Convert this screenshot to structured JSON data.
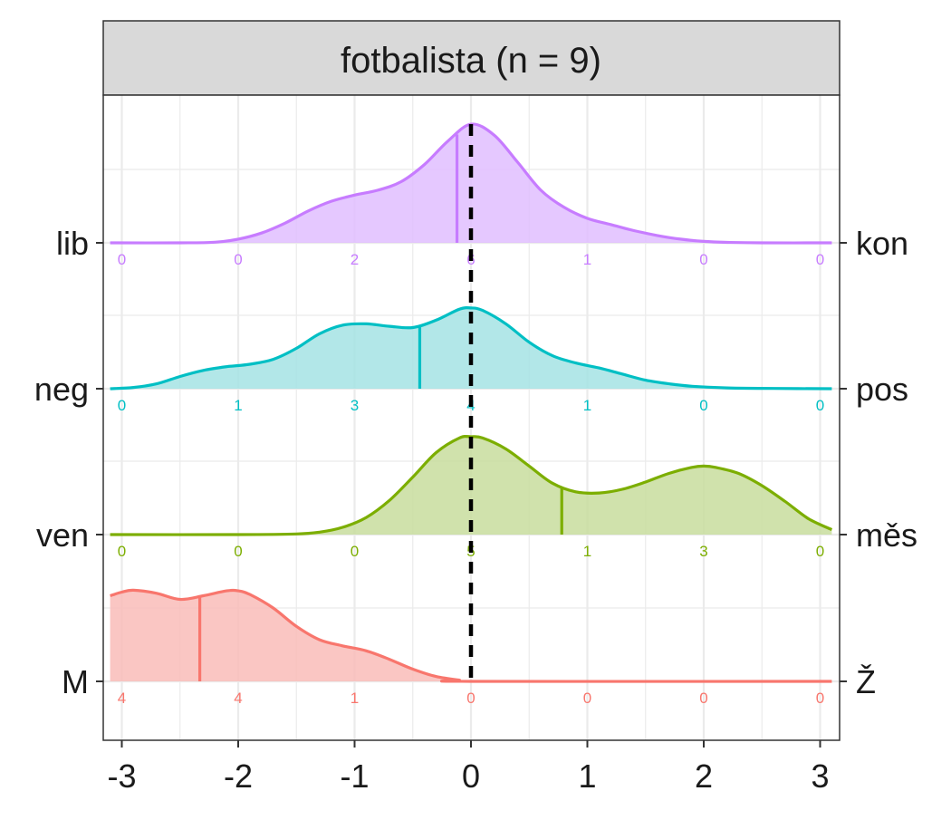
{
  "chart_data": {
    "type": "ridgeline",
    "facet_title": "fotbalista (n = 9)",
    "x_ticks": [
      "-3",
      "-2",
      "-1",
      "0",
      "1",
      "2",
      "3"
    ],
    "xlim": [
      -3.1,
      3.1
    ],
    "reference_line_x": 0,
    "grid": true,
    "count_positions": [
      -3,
      -2,
      -1,
      0,
      1,
      2,
      3
    ],
    "rows": [
      {
        "left_label": "lib",
        "right_label": "kon",
        "color": "#C77CFF",
        "fill": "#E1BEFF",
        "mean": -0.12,
        "counts": [
          "0",
          "0",
          "2",
          "6",
          "1",
          "0",
          "0"
        ],
        "density": [
          [
            -3.1,
            0
          ],
          [
            -2.5,
            0
          ],
          [
            -2.2,
            0.005
          ],
          [
            -2.0,
            0.03
          ],
          [
            -1.8,
            0.08
          ],
          [
            -1.6,
            0.16
          ],
          [
            -1.4,
            0.26
          ],
          [
            -1.2,
            0.34
          ],
          [
            -1.0,
            0.39
          ],
          [
            -0.8,
            0.43
          ],
          [
            -0.6,
            0.5
          ],
          [
            -0.4,
            0.64
          ],
          [
            -0.2,
            0.83
          ],
          [
            0,
            0.97
          ],
          [
            0.2,
            0.88
          ],
          [
            0.4,
            0.66
          ],
          [
            0.6,
            0.43
          ],
          [
            0.8,
            0.29
          ],
          [
            1.0,
            0.2
          ],
          [
            1.2,
            0.15
          ],
          [
            1.4,
            0.1
          ],
          [
            1.6,
            0.06
          ],
          [
            1.8,
            0.03
          ],
          [
            2.0,
            0.012
          ],
          [
            2.2,
            0.004
          ],
          [
            2.5,
            0
          ],
          [
            3.1,
            0
          ]
        ]
      },
      {
        "left_label": "neg",
        "right_label": "pos",
        "color": "#00BFC4",
        "fill": "#A5E3E4",
        "mean": -0.44,
        "counts": [
          "0",
          "1",
          "3",
          "4",
          "1",
          "0",
          "0"
        ],
        "density": [
          [
            -3.1,
            0
          ],
          [
            -2.9,
            0.01
          ],
          [
            -2.7,
            0.04
          ],
          [
            -2.5,
            0.1
          ],
          [
            -2.3,
            0.15
          ],
          [
            -2.1,
            0.18
          ],
          [
            -1.9,
            0.2
          ],
          [
            -1.7,
            0.24
          ],
          [
            -1.5,
            0.33
          ],
          [
            -1.3,
            0.45
          ],
          [
            -1.1,
            0.52
          ],
          [
            -0.9,
            0.53
          ],
          [
            -0.7,
            0.51
          ],
          [
            -0.5,
            0.5
          ],
          [
            -0.3,
            0.56
          ],
          [
            -0.1,
            0.65
          ],
          [
            0,
            0.66
          ],
          [
            0.1,
            0.64
          ],
          [
            0.3,
            0.53
          ],
          [
            0.5,
            0.38
          ],
          [
            0.7,
            0.27
          ],
          [
            0.9,
            0.21
          ],
          [
            1.1,
            0.17
          ],
          [
            1.3,
            0.12
          ],
          [
            1.5,
            0.07
          ],
          [
            1.7,
            0.04
          ],
          [
            1.9,
            0.02
          ],
          [
            2.2,
            0.007
          ],
          [
            2.6,
            0.002
          ],
          [
            3.1,
            0
          ]
        ]
      },
      {
        "left_label": "ven",
        "right_label": "měs",
        "color": "#7CAE00",
        "fill": "#C8DD9E",
        "mean": 0.78,
        "counts": [
          "0",
          "0",
          "0",
          "5",
          "1",
          "3",
          "0"
        ],
        "density": [
          [
            -3.1,
            0
          ],
          [
            -2.0,
            0
          ],
          [
            -1.5,
            0.005
          ],
          [
            -1.3,
            0.02
          ],
          [
            -1.1,
            0.06
          ],
          [
            -0.9,
            0.14
          ],
          [
            -0.7,
            0.28
          ],
          [
            -0.5,
            0.47
          ],
          [
            -0.3,
            0.67
          ],
          [
            -0.1,
            0.79
          ],
          [
            0,
            0.8
          ],
          [
            0.1,
            0.79
          ],
          [
            0.3,
            0.7
          ],
          [
            0.5,
            0.56
          ],
          [
            0.7,
            0.42
          ],
          [
            0.9,
            0.35
          ],
          [
            1.1,
            0.34
          ],
          [
            1.3,
            0.37
          ],
          [
            1.5,
            0.43
          ],
          [
            1.7,
            0.5
          ],
          [
            1.9,
            0.55
          ],
          [
            2.0,
            0.56
          ],
          [
            2.1,
            0.55
          ],
          [
            2.3,
            0.5
          ],
          [
            2.5,
            0.4
          ],
          [
            2.7,
            0.27
          ],
          [
            2.9,
            0.13
          ],
          [
            3.1,
            0.04
          ]
        ]
      },
      {
        "left_label": "M",
        "right_label": "Ž",
        "color": "#F8766D",
        "fill": "#F9BCB8",
        "mean": -2.33,
        "counts": [
          "4",
          "4",
          "1",
          "0",
          "0",
          "0",
          "0"
        ],
        "density": [
          [
            -3.1,
            0.7
          ],
          [
            -3.0,
            0.73
          ],
          [
            -2.9,
            0.745
          ],
          [
            -2.7,
            0.72
          ],
          [
            -2.5,
            0.67
          ],
          [
            -2.3,
            0.7
          ],
          [
            -2.1,
            0.74
          ],
          [
            -2.0,
            0.74
          ],
          [
            -1.9,
            0.71
          ],
          [
            -1.7,
            0.6
          ],
          [
            -1.5,
            0.45
          ],
          [
            -1.3,
            0.34
          ],
          [
            -1.1,
            0.29
          ],
          [
            -0.9,
            0.25
          ],
          [
            -0.7,
            0.18
          ],
          [
            -0.5,
            0.1
          ],
          [
            -0.3,
            0.04
          ],
          [
            -0.1,
            0.01
          ],
          [
            0,
            0
          ],
          [
            3.1,
            0
          ]
        ]
      }
    ]
  }
}
